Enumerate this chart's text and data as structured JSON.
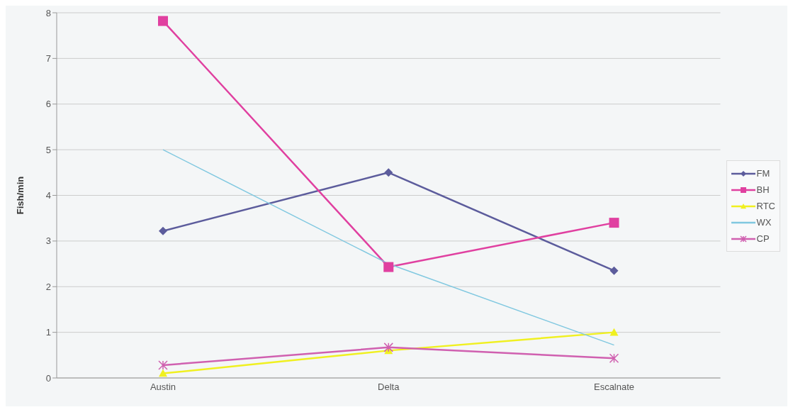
{
  "chart_data": {
    "type": "line",
    "ylabel": "Fish/min",
    "categories": [
      "Austin",
      "Delta",
      "Escalnate"
    ],
    "series": [
      {
        "name": "FM",
        "color": "#5c5c9c",
        "values": [
          3.22,
          4.5,
          2.35
        ],
        "marker": "diamond"
      },
      {
        "name": "BH",
        "color": "#e040a0",
        "values": [
          7.82,
          2.43,
          3.4
        ],
        "marker": "square"
      },
      {
        "name": "RTC",
        "color": "#f0f020",
        "values": [
          0.1,
          0.6,
          1.0
        ],
        "marker": "triangle"
      },
      {
        "name": "WX",
        "color": "#80c8e0",
        "values": [
          5.0,
          2.5,
          0.72
        ],
        "marker": "none"
      },
      {
        "name": "CP",
        "color": "#d060b0",
        "values": [
          0.28,
          0.67,
          0.43
        ],
        "marker": "cross"
      }
    ],
    "ylim": [
      0,
      8
    ],
    "yticks": [
      0,
      1,
      2,
      3,
      4,
      5,
      6,
      7,
      8
    ],
    "grid": "y",
    "legend": "right"
  }
}
